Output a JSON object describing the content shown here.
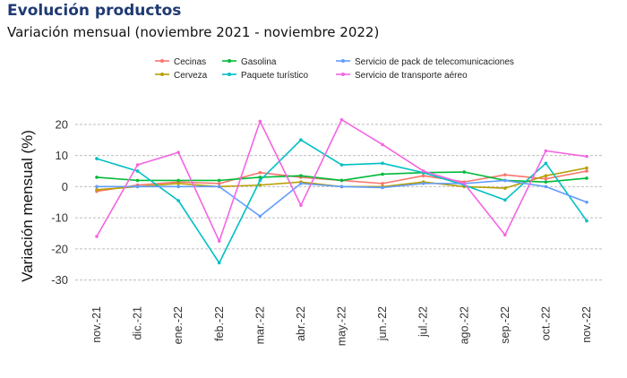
{
  "header": {
    "title": "Evolución productos",
    "subtitle": "Variación mensual (noviembre 2021 - noviembre 2022)"
  },
  "chart_data": {
    "type": "line",
    "title": "Evolución productos",
    "subtitle": "Variación mensual (noviembre 2021 - noviembre 2022)",
    "xlabel": "",
    "ylabel": "Variación mensual (%)",
    "ylim": [
      -35,
      26
    ],
    "yticks": [
      20,
      10,
      0,
      -10,
      -20,
      -30
    ],
    "grid": true,
    "legend_position": "top",
    "categories": [
      "nov.-21",
      "dic.-21",
      "ene.-22",
      "feb.-22",
      "mar.-22",
      "abr.-22",
      "may.-22",
      "jun.-22",
      "jul.-22",
      "ago.-22",
      "sep.-22",
      "oct.-22",
      "nov.-22"
    ],
    "series": [
      {
        "name": "Cecinas",
        "color": "#f8766d",
        "values": [
          -1.5,
          0.5,
          1.5,
          1.0,
          4.5,
          3.0,
          2.0,
          1.0,
          3.5,
          1.5,
          3.8,
          2.5,
          5.0
        ]
      },
      {
        "name": "Cerveza",
        "color": "#b79f00",
        "values": [
          -1.0,
          0.0,
          1.0,
          0.0,
          0.5,
          1.5,
          0.0,
          0.0,
          1.5,
          0.0,
          -0.5,
          3.5,
          6.0
        ]
      },
      {
        "name": "Gasolina",
        "color": "#00ba38",
        "values": [
          3.0,
          2.0,
          2.0,
          2.0,
          3.0,
          3.5,
          2.0,
          4.0,
          4.5,
          4.7,
          2.0,
          1.5,
          2.7
        ]
      },
      {
        "name": "Paquete turístico",
        "color": "#00bfc4",
        "values": [
          9.0,
          5.0,
          -4.5,
          -24.5,
          2.0,
          15.0,
          7.0,
          7.5,
          4.5,
          0.5,
          -4.3,
          7.5,
          -11.0
        ]
      },
      {
        "name": "Servicio de pack de telecomunicaciones",
        "color": "#619cff",
        "values": [
          0.0,
          0.0,
          0.0,
          0.0,
          -9.5,
          1.0,
          0.0,
          -0.3,
          1.0,
          1.0,
          2.0,
          0.0,
          -5.0
        ]
      },
      {
        "name": "Servicio de transporte aéreo",
        "color": "#f564e3",
        "values": [
          -16.0,
          7.0,
          11.0,
          -17.5,
          21.0,
          -6.0,
          21.5,
          13.5,
          5.0,
          1.0,
          -15.5,
          11.5,
          9.7
        ]
      }
    ]
  }
}
